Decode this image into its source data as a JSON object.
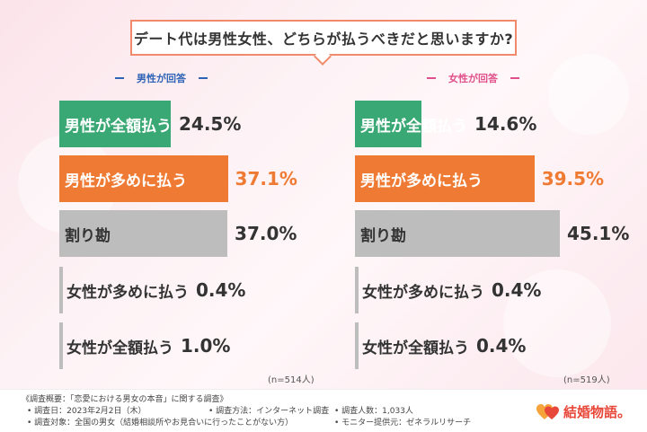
{
  "title": "デート代は男性女性、どちらが払うべきだと思いますか?",
  "colors": {
    "green": "#3aa874",
    "orange": "#ef7a33",
    "gray": "#bdbdbd",
    "male_header": "#2e63b5",
    "female_header": "#e0508a",
    "dark_text": "#333333",
    "white_text": "#ffffff"
  },
  "panels": [
    {
      "header": "男性が回答",
      "n_note": "(n=514人)"
    },
    {
      "header": "女性が回答",
      "n_note": "(n=519人)"
    }
  ],
  "chart_data": [
    {
      "type": "bar",
      "title": "男性が回答",
      "categories": [
        "男性が全額払う",
        "男性が多めに払う",
        "割り勘",
        "女性が多めに払う",
        "女性が全額払う"
      ],
      "values": [
        24.5,
        37.1,
        37.0,
        0.4,
        1.0
      ],
      "labels": [
        "24.5%",
        "37.1%",
        "37.0%",
        "0.4%",
        "1.0%"
      ],
      "colors": [
        "#3aa874",
        "#ef7a33",
        "#bdbdbd",
        "#bdbdbd",
        "#bdbdbd"
      ],
      "xlim": [
        0,
        45.1
      ]
    },
    {
      "type": "bar",
      "title": "女性が回答",
      "categories": [
        "男性が全額払う",
        "男性が多めに払う",
        "割り勘",
        "女性が多めに払う",
        "女性が全額払う"
      ],
      "values": [
        14.6,
        39.5,
        45.1,
        0.4,
        0.4
      ],
      "labels": [
        "14.6%",
        "39.5%",
        "45.1%",
        "0.4%",
        "0.4%"
      ],
      "colors": [
        "#3aa874",
        "#ef7a33",
        "#bdbdbd",
        "#bdbdbd",
        "#bdbdbd"
      ],
      "xlim": [
        0,
        45.1
      ]
    }
  ],
  "footer": {
    "summary": "《調査概要：「恋愛における男女の本音」に関する調査》",
    "date": "• 調査日：2023年2月2日（木）",
    "method": "• 調査方法：インターネット調査",
    "count": "• 調査人数：1,033人",
    "target": "• 調査対象：全国の男女（結婚相談所やお見合いに行ったことがない方）",
    "provider": "• モニター提供元：ゼネラルリサーチ",
    "logo_text": "結婚物語。"
  }
}
